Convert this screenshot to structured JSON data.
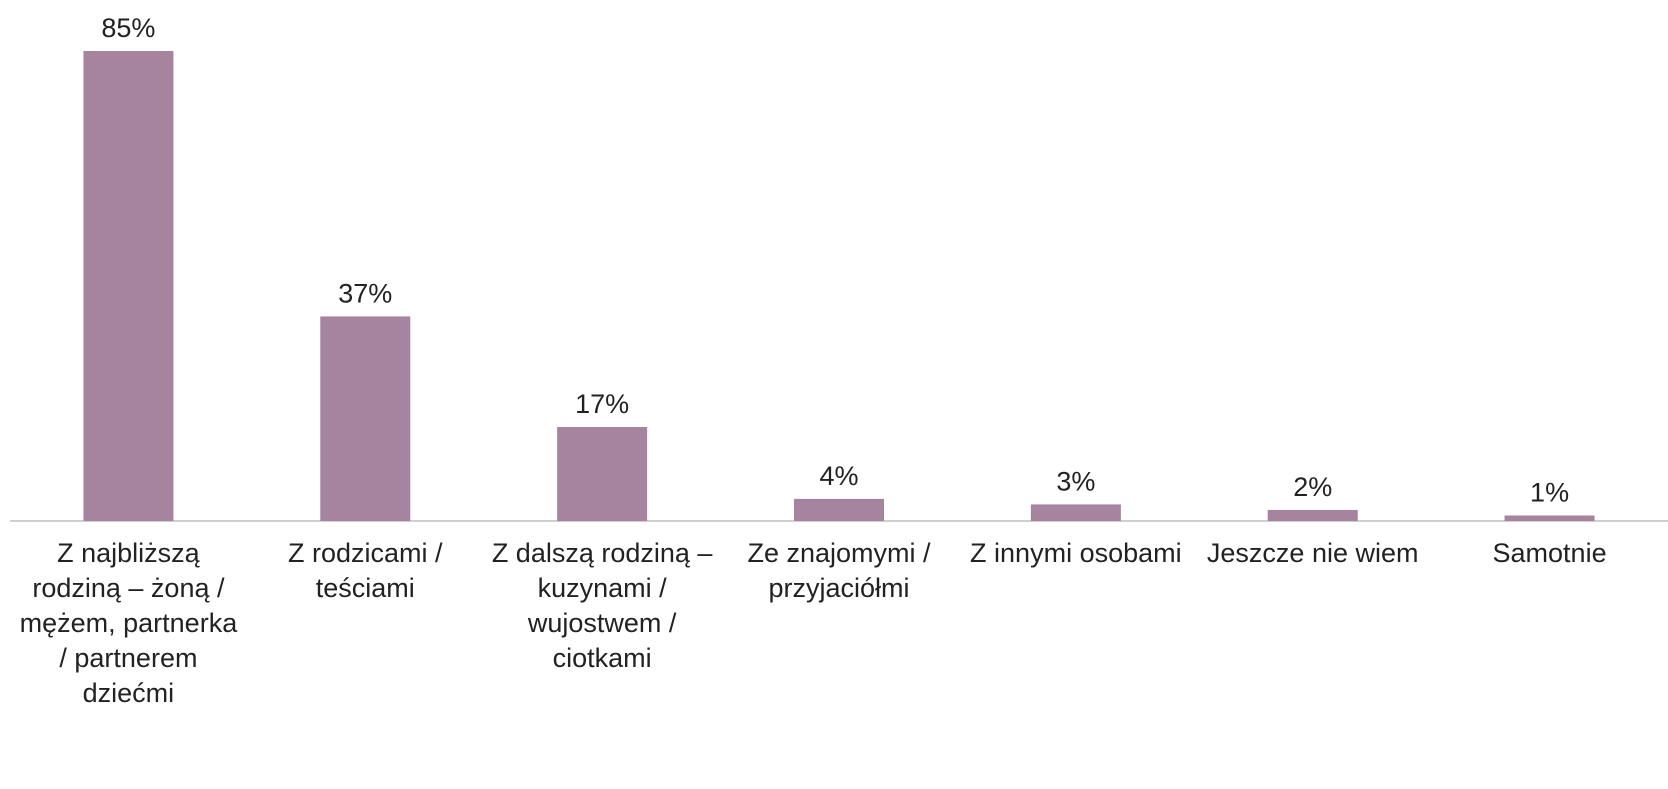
{
  "chart_data": {
    "type": "bar",
    "categories": [
      "Z najbliższą rodziną – żoną / mężem, partnerka / partnerem dziećmi",
      "Z rodzicami / teściami",
      "Z dalszą rodziną – kuzynami / wujostwem / ciotkami",
      "Ze znajomymi / przyjaciółmi",
      "Z innymi osobami",
      "Jeszcze nie wiem",
      "Samotnie"
    ],
    "values": [
      85,
      37,
      17,
      4,
      3,
      2,
      1
    ],
    "value_labels": [
      "85%",
      "37%",
      "17%",
      "4%",
      "3%",
      "2%",
      "1%"
    ],
    "color": "#a6849f"
  }
}
